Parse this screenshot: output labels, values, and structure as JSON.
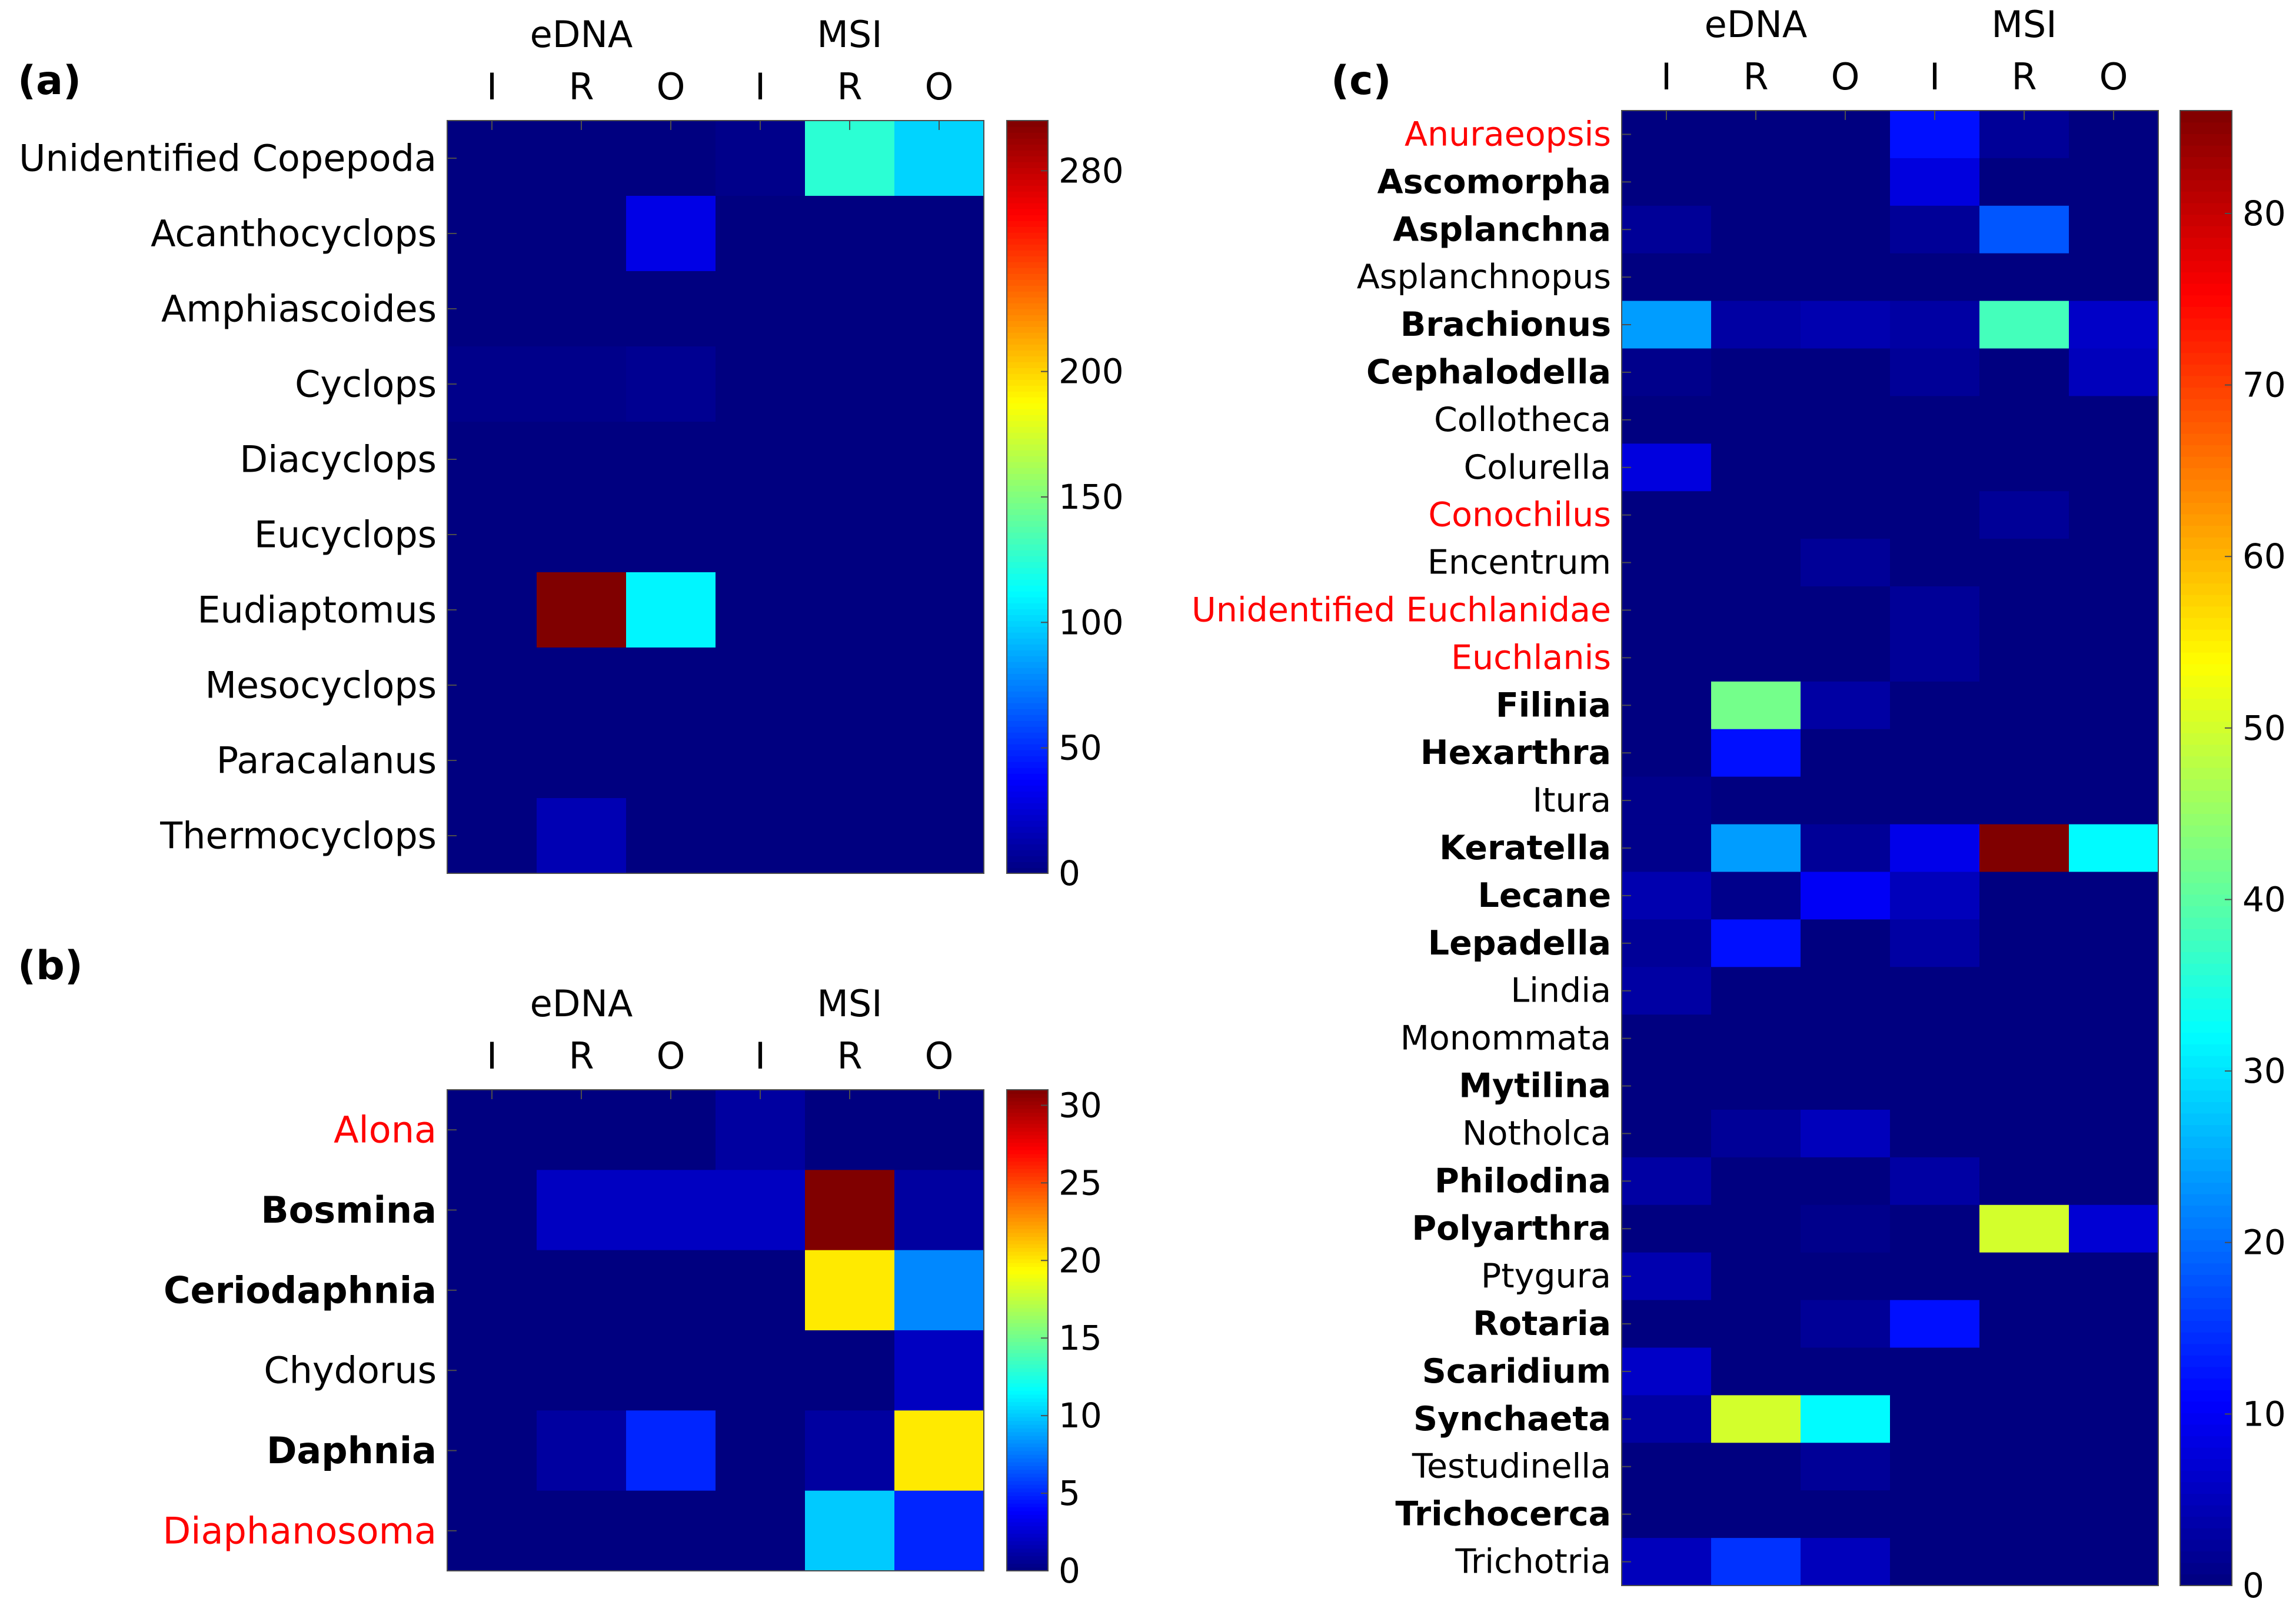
{
  "chart_data": [
    {
      "type": "heatmap",
      "panel_label": "(a)",
      "group_labels": [
        "eDNA",
        "MSI"
      ],
      "columns": [
        "I",
        "R",
        "O",
        "I",
        "R",
        "O"
      ],
      "rows": [
        {
          "label": "Unidentified Copepoda",
          "style": "normal",
          "values": [
            0,
            0,
            0,
            3,
            125,
            100
          ]
        },
        {
          "label": "Acanthocyclops",
          "style": "normal",
          "values": [
            0,
            0,
            30,
            0,
            0,
            0
          ]
        },
        {
          "label": "Amphiascoides",
          "style": "normal",
          "values": [
            0,
            0,
            0,
            0,
            0,
            0
          ]
        },
        {
          "label": "Cyclops",
          "style": "normal",
          "values": [
            3,
            3,
            5,
            0,
            0,
            0
          ]
        },
        {
          "label": "Diacyclops",
          "style": "normal",
          "values": [
            0,
            0,
            0,
            0,
            0,
            0
          ]
        },
        {
          "label": "Eucyclops",
          "style": "normal",
          "values": [
            0,
            0,
            0,
            0,
            0,
            0
          ]
        },
        {
          "label": "Eudiaptomus",
          "style": "normal",
          "values": [
            0,
            300,
            110,
            0,
            0,
            0
          ]
        },
        {
          "label": "Mesocyclops",
          "style": "normal",
          "values": [
            0,
            0,
            0,
            0,
            0,
            0
          ]
        },
        {
          "label": "Paracalanus",
          "style": "normal",
          "values": [
            0,
            0,
            0,
            0,
            0,
            0
          ]
        },
        {
          "label": "Thermocyclops",
          "style": "normal",
          "values": [
            0,
            15,
            0,
            0,
            0,
            0
          ]
        }
      ],
      "colorbar": {
        "min": 0,
        "max": 300,
        "ticks": [
          0,
          50,
          100,
          150,
          200,
          280
        ]
      }
    },
    {
      "type": "heatmap",
      "panel_label": "(b)",
      "group_labels": [
        "eDNA",
        "MSI"
      ],
      "columns": [
        "I",
        "R",
        "O",
        "I",
        "R",
        "O"
      ],
      "rows": [
        {
          "label": "Alona",
          "style": "red",
          "values": [
            0,
            0,
            0,
            1,
            0,
            0
          ]
        },
        {
          "label": "Bosmina",
          "style": "bold",
          "values": [
            0,
            2,
            2,
            2,
            31,
            1
          ]
        },
        {
          "label": "Ceriodaphnia",
          "style": "bold",
          "values": [
            0,
            0,
            0,
            0,
            20,
            8
          ]
        },
        {
          "label": "Chydorus",
          "style": "normal",
          "values": [
            0,
            0,
            0,
            0,
            0,
            2
          ]
        },
        {
          "label": "Daphnia",
          "style": "bold",
          "values": [
            0,
            1,
            5,
            0,
            1,
            20
          ]
        },
        {
          "label": "Diaphanosoma",
          "style": "red",
          "values": [
            0,
            0,
            0,
            0,
            10,
            5
          ]
        }
      ],
      "colorbar": {
        "min": 0,
        "max": 31,
        "ticks": [
          0,
          5,
          10,
          15,
          20,
          25,
          30
        ]
      }
    },
    {
      "type": "heatmap",
      "panel_label": "(c)",
      "group_labels": [
        "eDNA",
        "MSI"
      ],
      "columns": [
        "I",
        "R",
        "O",
        "I",
        "R",
        "O"
      ],
      "rows": [
        {
          "label": "Anuraeopsis",
          "style": "red",
          "values": [
            0,
            0,
            0,
            12,
            2,
            0
          ]
        },
        {
          "label": "Ascomorpha",
          "style": "bold",
          "values": [
            0,
            0,
            0,
            8,
            0,
            0
          ]
        },
        {
          "label": "Asplanchna",
          "style": "bold",
          "values": [
            2,
            0,
            0,
            2,
            18,
            0
          ]
        },
        {
          "label": "Asplanchnopus",
          "style": "normal",
          "values": [
            0,
            0,
            0,
            0,
            0,
            0
          ]
        },
        {
          "label": "Brachionus",
          "style": "bold",
          "values": [
            24,
            3,
            4,
            3,
            38,
            6
          ]
        },
        {
          "label": "Cephalodella",
          "style": "bold",
          "values": [
            1,
            0,
            0,
            2,
            0,
            5
          ]
        },
        {
          "label": "Collotheca",
          "style": "normal",
          "values": [
            0,
            0,
            0,
            0,
            0,
            0
          ]
        },
        {
          "label": "Colurella",
          "style": "normal",
          "values": [
            8,
            0,
            0,
            0,
            0,
            0
          ]
        },
        {
          "label": "Conochilus",
          "style": "red",
          "values": [
            0,
            0,
            0,
            0,
            2,
            0
          ]
        },
        {
          "label": "Encentrum",
          "style": "normal",
          "values": [
            0,
            0,
            2,
            0,
            0,
            0
          ]
        },
        {
          "label": "Unidentified Euchlanidae",
          "style": "red",
          "values": [
            0,
            0,
            0,
            2,
            0,
            0
          ]
        },
        {
          "label": "Euchlanis",
          "style": "red",
          "values": [
            0,
            0,
            0,
            2,
            0,
            0
          ]
        },
        {
          "label": "Filinia",
          "style": "bold",
          "values": [
            0,
            42,
            3,
            0,
            0,
            0
          ]
        },
        {
          "label": "Hexarthra",
          "style": "bold",
          "values": [
            0,
            12,
            0,
            0,
            0,
            0
          ]
        },
        {
          "label": "Itura",
          "style": "normal",
          "values": [
            1,
            0,
            0,
            0,
            0,
            0
          ]
        },
        {
          "label": "Keratella",
          "style": "bold",
          "values": [
            1,
            24,
            2,
            9,
            86,
            32
          ]
        },
        {
          "label": "Lecane",
          "style": "bold",
          "values": [
            4,
            1,
            10,
            5,
            0,
            0
          ]
        },
        {
          "label": "Lepadella",
          "style": "bold",
          "values": [
            2,
            12,
            0,
            3,
            0,
            0
          ]
        },
        {
          "label": "Lindia",
          "style": "normal",
          "values": [
            3,
            0,
            0,
            0,
            0,
            0
          ]
        },
        {
          "label": "Monommata",
          "style": "normal",
          "values": [
            0,
            0,
            0,
            0,
            0,
            0
          ]
        },
        {
          "label": "Mytilina",
          "style": "bold",
          "values": [
            0,
            0,
            0,
            0,
            0,
            0
          ]
        },
        {
          "label": "Notholca",
          "style": "normal",
          "values": [
            0,
            2,
            5,
            0,
            0,
            0
          ]
        },
        {
          "label": "Philodina",
          "style": "bold",
          "values": [
            3,
            0,
            0,
            3,
            0,
            0
          ]
        },
        {
          "label": "Polyarthra",
          "style": "bold",
          "values": [
            0,
            0,
            1,
            0,
            50,
            7
          ]
        },
        {
          "label": "Ptygura",
          "style": "normal",
          "values": [
            4,
            0,
            0,
            0,
            0,
            0
          ]
        },
        {
          "label": "Rotaria",
          "style": "bold",
          "values": [
            0,
            0,
            2,
            12,
            0,
            0
          ]
        },
        {
          "label": "Scaridium",
          "style": "bold",
          "values": [
            6,
            0,
            0,
            0,
            0,
            0
          ]
        },
        {
          "label": "Synchaeta",
          "style": "bold",
          "values": [
            3,
            50,
            32,
            0,
            0,
            0
          ]
        },
        {
          "label": "Testudinella",
          "style": "normal",
          "values": [
            0,
            0,
            2,
            0,
            0,
            0
          ]
        },
        {
          "label": "Trichocerca",
          "style": "bold",
          "values": [
            0,
            0,
            0,
            0,
            0,
            0
          ]
        },
        {
          "label": "Trichotria",
          "style": "normal",
          "values": [
            5,
            15,
            5,
            0,
            0,
            0
          ]
        }
      ],
      "colorbar": {
        "min": 0,
        "max": 86,
        "ticks": [
          0,
          10,
          20,
          30,
          40,
          50,
          60,
          70,
          80
        ]
      }
    }
  ],
  "colors": {
    "label_red": "#ff0000",
    "label_black": "#000000",
    "colormap": "jet"
  }
}
